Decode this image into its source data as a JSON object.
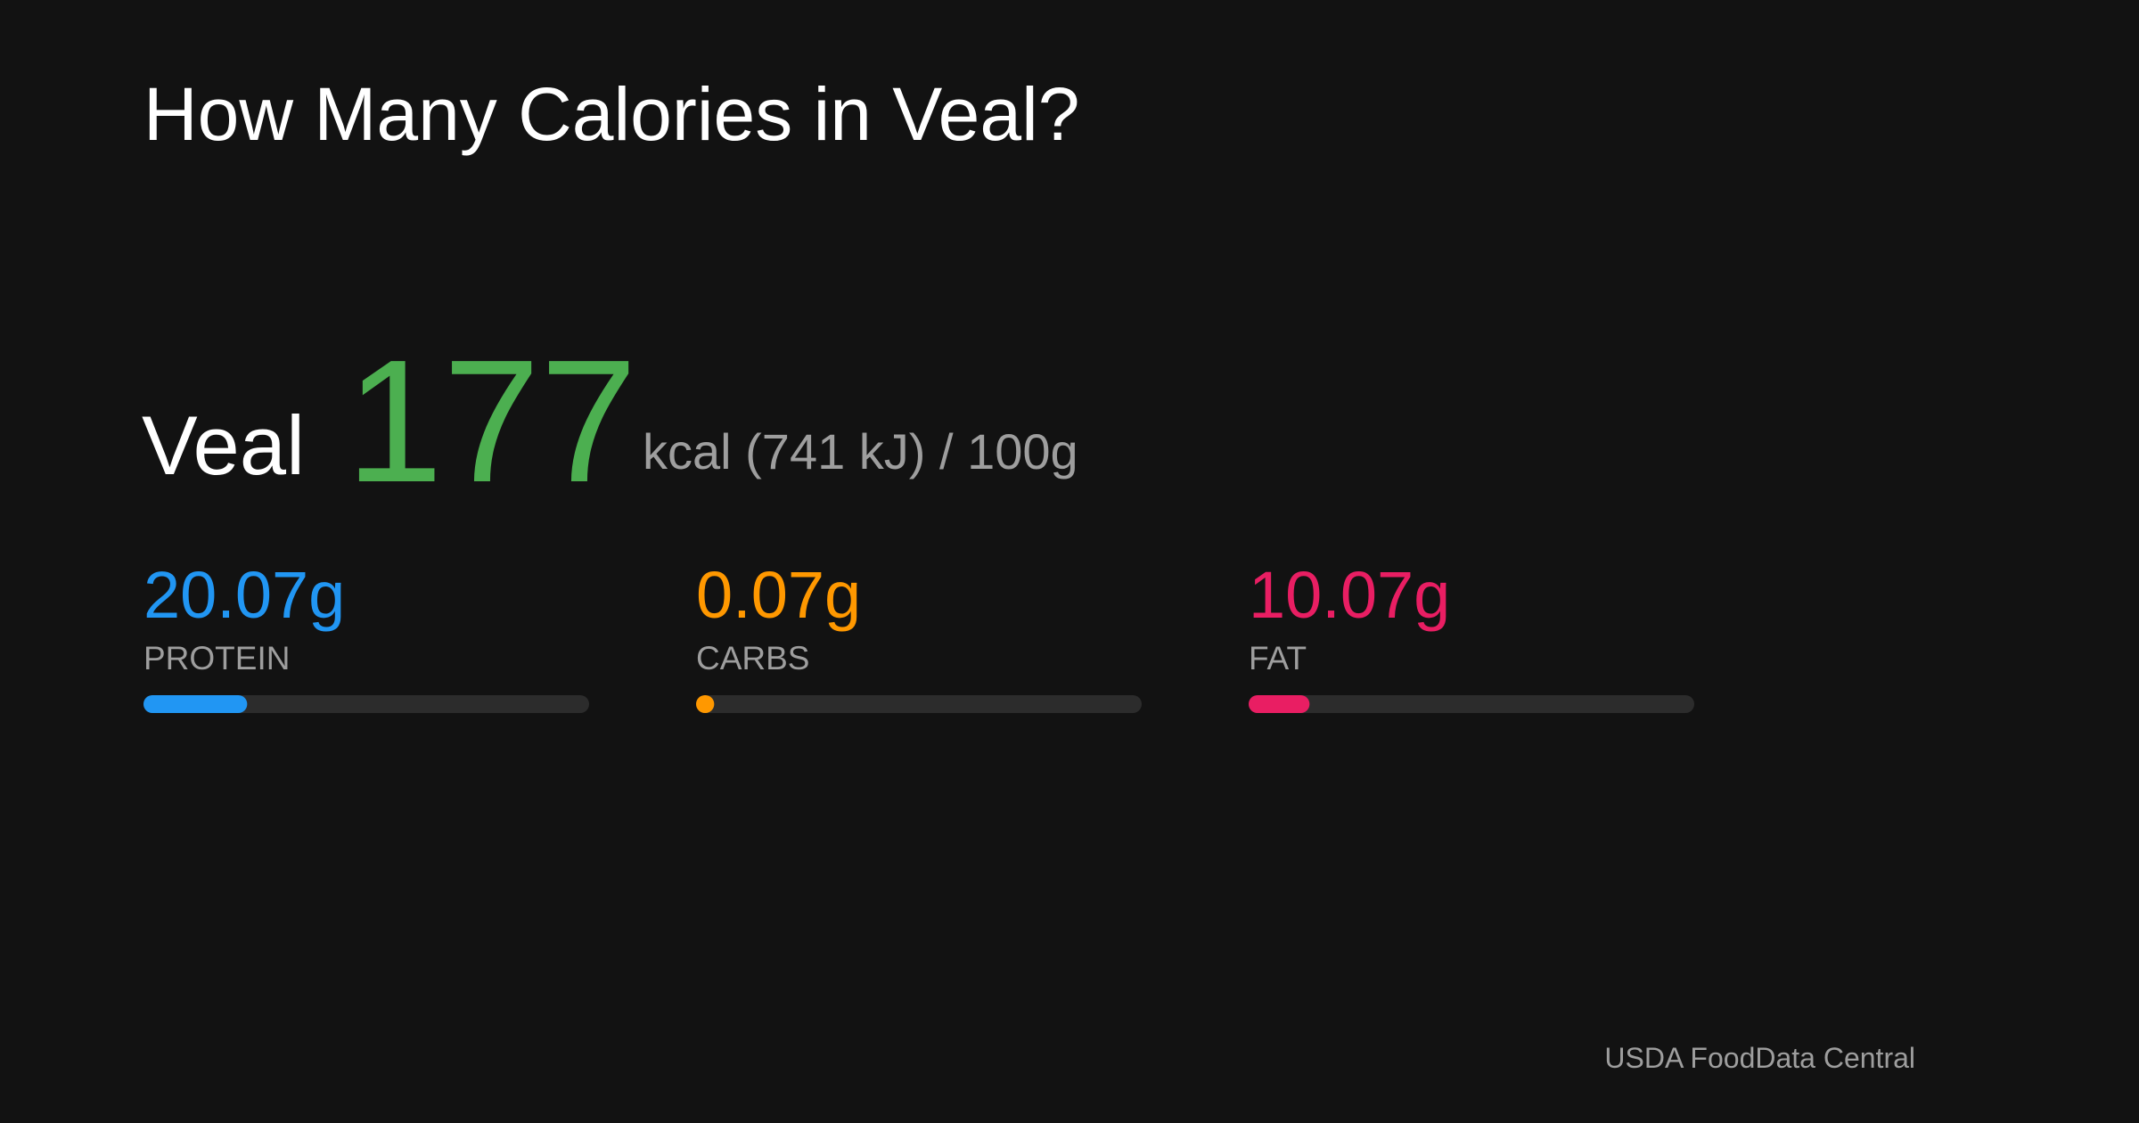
{
  "header": {
    "title": "How Many Calories in Veal?"
  },
  "food": {
    "name": "Veal",
    "calories": 177,
    "unit_text": "kcal (741 kJ) / 100g",
    "color": "#4caf50"
  },
  "macros": {
    "xlim": [
      0,
      100
    ],
    "items": [
      {
        "value": 20.07,
        "value_label": "20.07g",
        "label": "PROTEIN",
        "color": "#2196f3"
      },
      {
        "value": 0.07,
        "value_label": "0.07g",
        "label": "CARBS",
        "color": "#ff9800"
      },
      {
        "value": 10.07,
        "value_label": "10.07g",
        "label": "FAT",
        "color": "#e91e63"
      }
    ]
  },
  "footer": {
    "source": "USDA FoodData Central"
  }
}
